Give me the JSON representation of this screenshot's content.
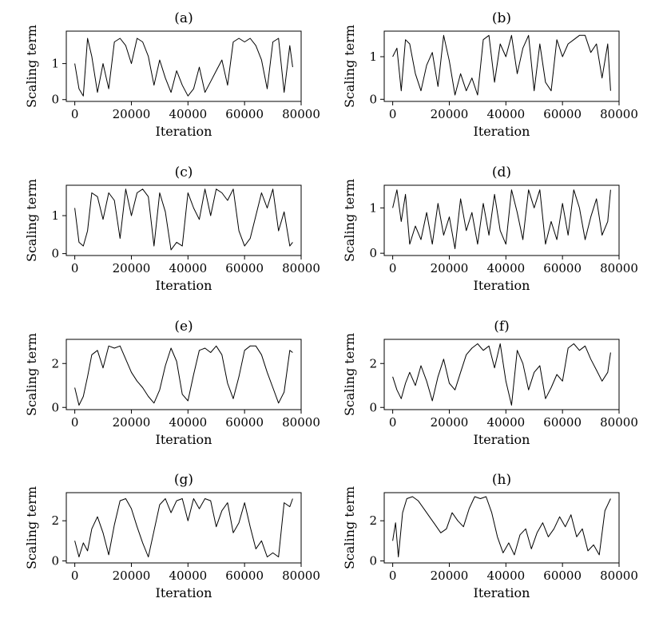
{
  "figure": {
    "background": "#ffffff",
    "line_color": "#000000"
  },
  "chart_data": [
    {
      "panel": "(a)",
      "type": "line",
      "title": "(a)",
      "xlabel": "Iteration",
      "ylabel": "Scaling term",
      "xlim": [
        -3000,
        80000
      ],
      "ylim": [
        -0.05,
        1.9
      ],
      "xticks": [
        0,
        20000,
        40000,
        60000,
        80000
      ],
      "yticks": [
        0,
        1
      ],
      "x": [
        0,
        1500,
        3000,
        4500,
        6000,
        8000,
        10000,
        12000,
        14000,
        16000,
        18000,
        20000,
        22000,
        24000,
        26000,
        28000,
        30000,
        32000,
        34000,
        36000,
        38000,
        40000,
        42000,
        44000,
        46000,
        48000,
        50000,
        52000,
        54000,
        56000,
        58000,
        60000,
        62000,
        64000,
        66000,
        68000,
        70000,
        72000,
        74000,
        76000,
        77000
      ],
      "y": [
        1.0,
        0.3,
        0.1,
        1.7,
        1.2,
        0.2,
        1.0,
        0.3,
        1.6,
        1.7,
        1.5,
        1.0,
        1.7,
        1.6,
        1.2,
        0.4,
        1.1,
        0.6,
        0.2,
        0.8,
        0.4,
        0.1,
        0.3,
        0.9,
        0.2,
        0.5,
        0.8,
        1.1,
        0.4,
        1.6,
        1.7,
        1.6,
        1.7,
        1.5,
        1.1,
        0.3,
        1.6,
        1.7,
        0.2,
        1.5,
        0.9
      ]
    },
    {
      "panel": "(b)",
      "type": "line",
      "title": "(b)",
      "xlabel": "Iteration",
      "ylabel": "Scaling term",
      "xlim": [
        -3000,
        80000
      ],
      "ylim": [
        -0.05,
        1.6
      ],
      "xticks": [
        0,
        20000,
        40000,
        60000,
        80000
      ],
      "yticks": [
        0,
        1
      ],
      "x": [
        0,
        1500,
        3000,
        4500,
        6000,
        8000,
        10000,
        12000,
        14000,
        16000,
        18000,
        20000,
        22000,
        24000,
        26000,
        28000,
        30000,
        32000,
        34000,
        36000,
        38000,
        40000,
        42000,
        44000,
        46000,
        48000,
        50000,
        52000,
        54000,
        56000,
        58000,
        60000,
        62000,
        64000,
        66000,
        68000,
        70000,
        72000,
        74000,
        76000,
        77000
      ],
      "y": [
        1.0,
        1.2,
        0.2,
        1.4,
        1.3,
        0.6,
        0.2,
        0.8,
        1.1,
        0.3,
        1.5,
        0.9,
        0.1,
        0.6,
        0.2,
        0.5,
        0.1,
        1.4,
        1.5,
        0.4,
        1.3,
        1.0,
        1.5,
        0.6,
        1.2,
        1.5,
        0.2,
        1.3,
        0.4,
        0.2,
        1.4,
        1.0,
        1.3,
        1.4,
        1.5,
        1.5,
        1.1,
        1.3,
        0.5,
        1.3,
        0.2
      ]
    },
    {
      "panel": "(c)",
      "type": "line",
      "title": "(c)",
      "xlabel": "Iteration",
      "ylabel": "Scaling term",
      "xlim": [
        -3000,
        80000
      ],
      "ylim": [
        -0.05,
        1.8
      ],
      "xticks": [
        0,
        20000,
        40000,
        60000,
        80000
      ],
      "yticks": [
        0,
        1
      ],
      "x": [
        0,
        1500,
        3000,
        4500,
        6000,
        8000,
        10000,
        12000,
        14000,
        16000,
        18000,
        20000,
        22000,
        24000,
        26000,
        28000,
        30000,
        32000,
        34000,
        36000,
        38000,
        40000,
        42000,
        44000,
        46000,
        48000,
        50000,
        52000,
        54000,
        56000,
        58000,
        60000,
        62000,
        64000,
        66000,
        68000,
        70000,
        72000,
        74000,
        76000,
        77000
      ],
      "y": [
        1.2,
        0.3,
        0.2,
        0.6,
        1.6,
        1.5,
        0.9,
        1.6,
        1.4,
        0.4,
        1.7,
        1.0,
        1.6,
        1.7,
        1.5,
        0.2,
        1.6,
        1.1,
        0.1,
        0.3,
        0.2,
        1.6,
        1.2,
        0.9,
        1.7,
        1.0,
        1.7,
        1.6,
        1.4,
        1.7,
        0.6,
        0.2,
        0.4,
        1.0,
        1.6,
        1.2,
        1.7,
        0.6,
        1.1,
        0.2,
        0.3
      ]
    },
    {
      "panel": "(d)",
      "type": "line",
      "title": "(d)",
      "xlabel": "Iteration",
      "ylabel": "Scaling term",
      "xlim": [
        -3000,
        80000
      ],
      "ylim": [
        -0.05,
        1.5
      ],
      "xticks": [
        0,
        20000,
        40000,
        60000,
        80000
      ],
      "yticks": [
        0,
        1
      ],
      "x": [
        0,
        1500,
        3000,
        4500,
        6000,
        8000,
        10000,
        12000,
        14000,
        16000,
        18000,
        20000,
        22000,
        24000,
        26000,
        28000,
        30000,
        32000,
        34000,
        36000,
        38000,
        40000,
        42000,
        44000,
        46000,
        48000,
        50000,
        52000,
        54000,
        56000,
        58000,
        60000,
        62000,
        64000,
        66000,
        68000,
        70000,
        72000,
        74000,
        76000,
        77000
      ],
      "y": [
        1.0,
        1.4,
        0.7,
        1.3,
        0.2,
        0.6,
        0.3,
        0.9,
        0.2,
        1.1,
        0.4,
        0.8,
        0.1,
        1.2,
        0.5,
        0.9,
        0.2,
        1.1,
        0.4,
        1.3,
        0.5,
        0.2,
        1.4,
        0.9,
        0.3,
        1.4,
        1.0,
        1.4,
        0.2,
        0.7,
        0.3,
        1.1,
        0.4,
        1.4,
        1.0,
        0.3,
        0.8,
        1.2,
        0.4,
        0.7,
        1.4
      ]
    },
    {
      "panel": "(e)",
      "type": "line",
      "title": "(e)",
      "xlabel": "Iteration",
      "ylabel": "Scaling term",
      "xlim": [
        -3000,
        80000
      ],
      "ylim": [
        -0.1,
        3.1
      ],
      "xticks": [
        0,
        20000,
        40000,
        60000,
        80000
      ],
      "yticks": [
        0,
        2
      ],
      "x": [
        0,
        1500,
        3000,
        4500,
        6000,
        8000,
        10000,
        12000,
        14000,
        16000,
        18000,
        20000,
        22000,
        24000,
        26000,
        28000,
        30000,
        32000,
        34000,
        36000,
        38000,
        40000,
        42000,
        44000,
        46000,
        48000,
        50000,
        52000,
        54000,
        56000,
        58000,
        60000,
        62000,
        64000,
        66000,
        68000,
        70000,
        72000,
        74000,
        76000,
        77000
      ],
      "y": [
        0.9,
        0.1,
        0.5,
        1.4,
        2.4,
        2.6,
        1.8,
        2.8,
        2.7,
        2.8,
        2.2,
        1.6,
        1.2,
        0.9,
        0.5,
        0.2,
        0.8,
        1.9,
        2.7,
        2.1,
        0.6,
        0.3,
        1.5,
        2.6,
        2.7,
        2.5,
        2.8,
        2.4,
        1.1,
        0.4,
        1.4,
        2.6,
        2.8,
        2.8,
        2.4,
        1.6,
        0.9,
        0.2,
        0.7,
        2.6,
        2.5
      ]
    },
    {
      "panel": "(f)",
      "type": "line",
      "title": "(f)",
      "xlabel": "Iteration",
      "ylabel": "Scaling term",
      "xlim": [
        -3000,
        80000
      ],
      "ylim": [
        -0.1,
        3.1
      ],
      "xticks": [
        0,
        20000,
        40000,
        60000,
        80000
      ],
      "yticks": [
        0,
        2
      ],
      "x": [
        0,
        1500,
        3000,
        4500,
        6000,
        8000,
        10000,
        12000,
        14000,
        16000,
        18000,
        20000,
        22000,
        24000,
        26000,
        28000,
        30000,
        32000,
        34000,
        36000,
        38000,
        40000,
        42000,
        44000,
        46000,
        48000,
        50000,
        52000,
        54000,
        56000,
        58000,
        60000,
        62000,
        64000,
        66000,
        68000,
        70000,
        72000,
        74000,
        76000,
        77000
      ],
      "y": [
        1.4,
        0.8,
        0.4,
        1.1,
        1.6,
        1.0,
        1.9,
        1.2,
        0.3,
        1.4,
        2.2,
        1.1,
        0.8,
        1.6,
        2.4,
        2.7,
        2.9,
        2.6,
        2.8,
        1.8,
        2.9,
        1.2,
        0.1,
        2.6,
        2.0,
        0.8,
        1.6,
        1.9,
        0.4,
        0.9,
        1.5,
        1.2,
        2.7,
        2.9,
        2.6,
        2.8,
        2.2,
        1.7,
        1.2,
        1.6,
        2.5
      ]
    },
    {
      "panel": "(g)",
      "type": "line",
      "title": "(g)",
      "xlabel": "Iteration",
      "ylabel": "Scaling term",
      "xlim": [
        -3000,
        80000
      ],
      "ylim": [
        -0.1,
        3.4
      ],
      "xticks": [
        0,
        20000,
        40000,
        60000,
        80000
      ],
      "yticks": [
        0,
        2
      ],
      "x": [
        0,
        1500,
        3000,
        4500,
        6000,
        8000,
        10000,
        12000,
        14000,
        16000,
        18000,
        20000,
        22000,
        24000,
        26000,
        28000,
        30000,
        32000,
        34000,
        36000,
        38000,
        40000,
        42000,
        44000,
        46000,
        48000,
        50000,
        52000,
        54000,
        56000,
        58000,
        60000,
        62000,
        64000,
        66000,
        68000,
        70000,
        72000,
        74000,
        76000,
        77000
      ],
      "y": [
        1.0,
        0.2,
        0.9,
        0.5,
        1.6,
        2.2,
        1.4,
        0.3,
        1.8,
        3.0,
        3.1,
        2.6,
        1.7,
        0.9,
        0.2,
        1.5,
        2.8,
        3.1,
        2.4,
        3.0,
        3.1,
        2.0,
        3.1,
        2.6,
        3.1,
        3.0,
        1.7,
        2.5,
        2.9,
        1.4,
        1.9,
        2.9,
        1.7,
        0.6,
        1.0,
        0.2,
        0.4,
        0.2,
        2.9,
        2.7,
        3.1
      ]
    },
    {
      "panel": "(h)",
      "type": "line",
      "title": "(h)",
      "xlabel": "Iteration",
      "ylabel": "Scaling term",
      "xlim": [
        -3000,
        80000
      ],
      "ylim": [
        -0.1,
        3.4
      ],
      "xticks": [
        0,
        20000,
        40000,
        60000,
        80000
      ],
      "yticks": [
        0,
        2
      ],
      "x": [
        0,
        1000,
        2000,
        3500,
        5000,
        7000,
        9000,
        11000,
        13000,
        15000,
        17000,
        19000,
        21000,
        23000,
        25000,
        27000,
        29000,
        31000,
        33000,
        35000,
        37000,
        39000,
        41000,
        43000,
        45000,
        47000,
        49000,
        51000,
        53000,
        55000,
        57000,
        59000,
        61000,
        63000,
        65000,
        67000,
        69000,
        71000,
        73000,
        75000,
        77000
      ],
      "y": [
        1.0,
        1.9,
        0.2,
        2.4,
        3.1,
        3.2,
        3.0,
        2.6,
        2.2,
        1.8,
        1.4,
        1.6,
        2.4,
        2.0,
        1.7,
        2.6,
        3.2,
        3.1,
        3.2,
        2.4,
        1.2,
        0.4,
        0.9,
        0.3,
        1.3,
        1.6,
        0.6,
        1.4,
        1.9,
        1.2,
        1.6,
        2.2,
        1.7,
        2.3,
        1.2,
        1.6,
        0.5,
        0.8,
        0.3,
        2.5,
        3.1
      ]
    }
  ]
}
